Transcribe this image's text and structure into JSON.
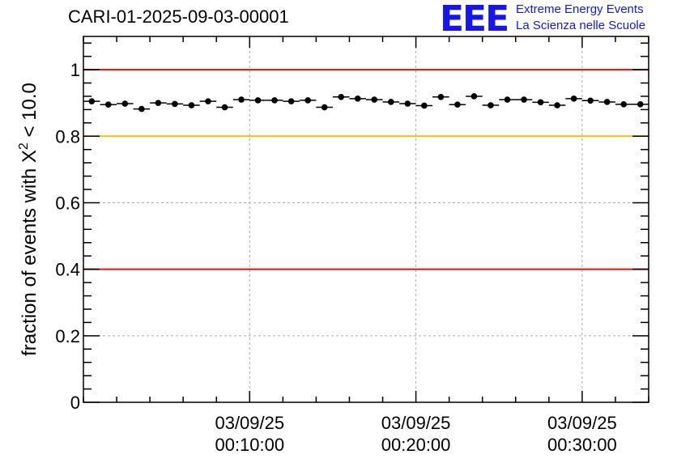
{
  "header": {
    "title": "CARI-01-2025-09-03-00001",
    "logo": "EEE",
    "logo_line1": "Extreme Energy Events",
    "logo_line2": "La Scienza nelle Scuole"
  },
  "chart_data": {
    "type": "scatter",
    "title": "CARI-01-2025-09-03-00001",
    "ylabel": "fraction of events with X² < 10.0",
    "xlabel": "",
    "ylim": [
      0,
      1.1
    ],
    "xlim_minutes": [
      0,
      34
    ],
    "grid": true,
    "x_ticks": [
      {
        "minute": 10,
        "label_date": "03/09/25",
        "label_time": "00:10:00"
      },
      {
        "minute": 20,
        "label_date": "03/09/25",
        "label_time": "00:20:00"
      },
      {
        "minute": 30,
        "label_date": "03/09/25",
        "label_time": "00:30:00"
      }
    ],
    "y_ticks": [
      "0",
      "0.2",
      "0.4",
      "0.6",
      "0.8",
      "1"
    ],
    "reference_lines": [
      {
        "y": 1.0,
        "color": "#e01010"
      },
      {
        "y": 0.8,
        "color": "#f5c000"
      },
      {
        "y": 0.4,
        "color": "#e01010"
      }
    ],
    "series": [
      {
        "x_minutes": [
          0.5,
          1.5,
          2.5,
          3.5,
          4.5,
          5.5,
          6.5,
          7.5,
          8.5,
          9.5,
          10.5,
          11.5,
          12.5,
          13.5,
          14.5,
          15.5,
          16.5,
          17.5,
          18.5,
          19.5,
          20.5,
          21.5,
          22.5,
          23.5,
          24.5,
          25.5,
          26.5,
          27.5,
          28.5,
          29.5,
          30.5,
          31.5,
          32.5,
          33.5
        ],
        "values": [
          0.905,
          0.895,
          0.898,
          0.882,
          0.9,
          0.897,
          0.893,
          0.905,
          0.887,
          0.91,
          0.908,
          0.908,
          0.905,
          0.908,
          0.887,
          0.918,
          0.913,
          0.91,
          0.903,
          0.898,
          0.892,
          0.918,
          0.895,
          0.92,
          0.893,
          0.91,
          0.91,
          0.902,
          0.893,
          0.913,
          0.907,
          0.903,
          0.896,
          0.896
        ],
        "color": "#000000"
      }
    ]
  }
}
